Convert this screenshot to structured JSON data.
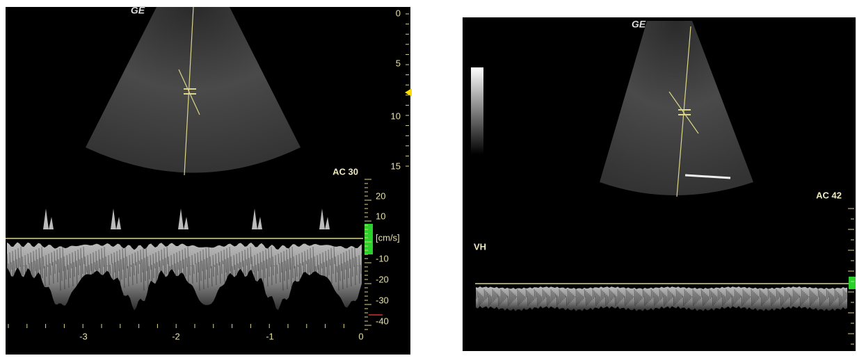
{
  "left_panel": {
    "logo": "GE",
    "depth_scale": [
      "0",
      "5",
      "10",
      "15"
    ],
    "gain_label": "AC 30",
    "velocity_scale": [
      "20",
      "10",
      "[cm/s]",
      "-10",
      "-20",
      "-30",
      "-40"
    ],
    "time_scale": [
      "-3",
      "-2",
      "-1",
      "0"
    ]
  },
  "right_panel": {
    "logo": "GE",
    "gain_label": "AC 42",
    "vessel_label": "VH"
  }
}
